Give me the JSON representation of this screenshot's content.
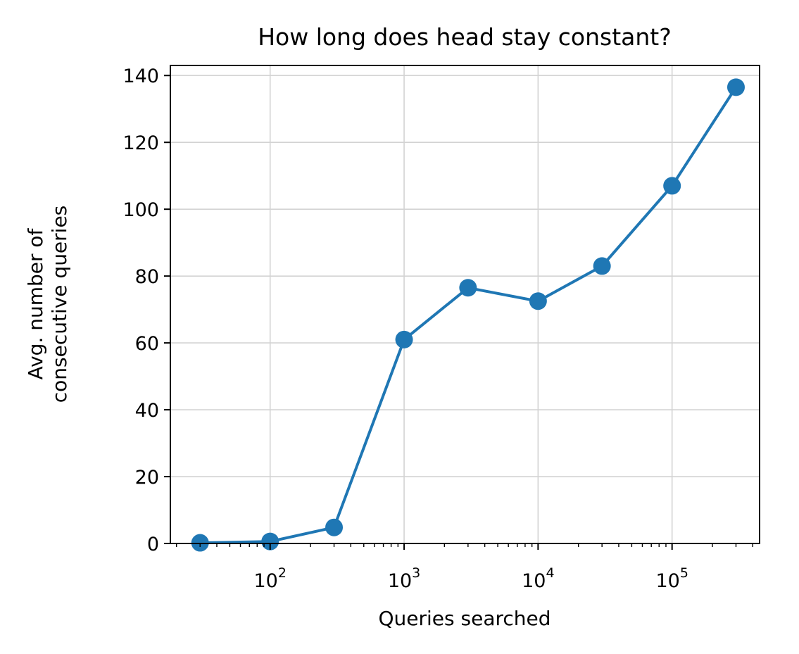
{
  "chart_data": {
    "type": "line",
    "title": "How long does head stay constant?",
    "xlabel": "Queries searched",
    "ylabel": [
      "Avg. number of",
      "consecutive queries"
    ],
    "xscale": "log",
    "xlim": [
      18,
      450000
    ],
    "ylim": [
      0,
      143
    ],
    "grid": true,
    "color": "#1f77b4",
    "x_ticks": [
      {
        "value": 100,
        "base": "10",
        "exp": "2"
      },
      {
        "value": 1000,
        "base": "10",
        "exp": "3"
      },
      {
        "value": 10000,
        "base": "10",
        "exp": "4"
      },
      {
        "value": 100000,
        "base": "10",
        "exp": "5"
      }
    ],
    "y_ticks": [
      "0",
      "20",
      "40",
      "60",
      "80",
      "100",
      "120",
      "140"
    ],
    "series": [
      {
        "x": [
          30,
          100,
          300,
          1000,
          3000,
          10000,
          30000,
          100000,
          300000
        ],
        "y": [
          0.2,
          0.6,
          4.8,
          61,
          76.5,
          72.5,
          83,
          107,
          136.5
        ]
      }
    ]
  }
}
